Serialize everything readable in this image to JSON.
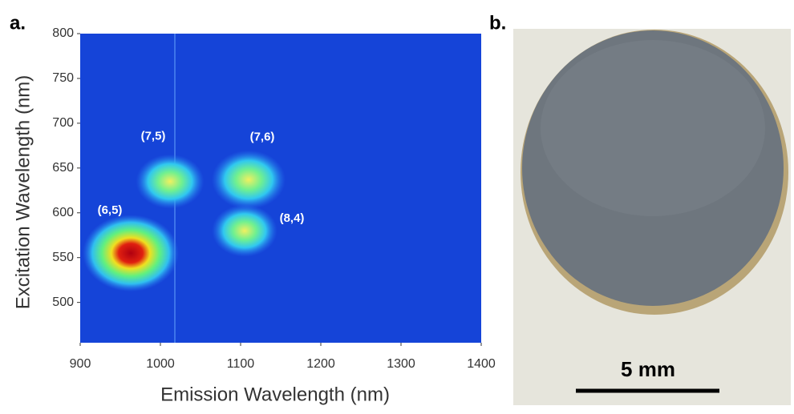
{
  "chart_data": {
    "type": "heatmap",
    "xlabel": "Emission Wavelength (nm)",
    "ylabel": "Excitation Wavelength (nm)",
    "xlim": [
      900,
      1400
    ],
    "ylim": [
      455,
      800
    ],
    "xticks": [
      900,
      1000,
      1100,
      1200,
      1300,
      1400
    ],
    "yticks": [
      500,
      550,
      600,
      650,
      700,
      750,
      800
    ],
    "peak_labels": [
      "(6,5)",
      "(7,5)",
      "(7,6)",
      "(8,4)"
    ],
    "x": [
      963,
      1012,
      1110,
      1105
    ],
    "values": [
      555,
      635,
      637,
      580
    ],
    "intensity": [
      1.0,
      0.5,
      0.6,
      0.45
    ],
    "background": "#1544d8"
  },
  "panel_labels": [
    "a.",
    "b."
  ],
  "photo": {
    "scale_bar_label": "5 mm"
  }
}
